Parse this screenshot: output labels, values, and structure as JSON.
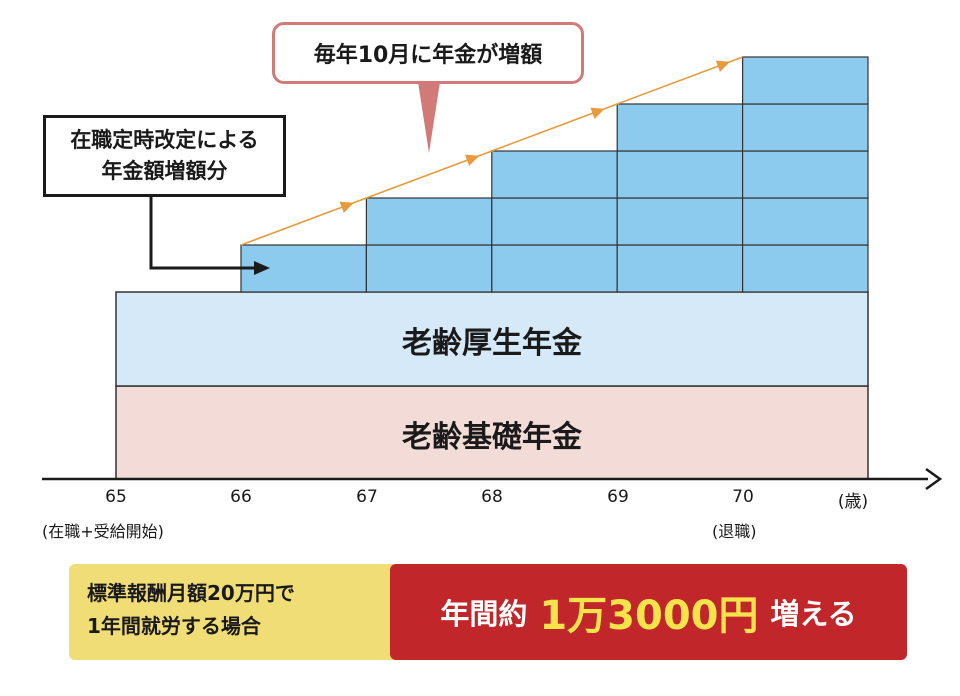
{
  "callout": {
    "text": "毎年10月に年金が増額"
  },
  "note": {
    "line1": "在職定時改定による",
    "line2": "年金額増額分"
  },
  "bars": {
    "kosei": "老齢厚生年金",
    "kiso": "老齢基礎年金"
  },
  "axis": {
    "ticks": [
      "65",
      "66",
      "67",
      "68",
      "69",
      "70"
    ],
    "unit": "(歳)",
    "start_note": "(在職+受給開始)",
    "end_note": "(退職)"
  },
  "steps": [
    1,
    2,
    3,
    4,
    5
  ],
  "condition": {
    "line1": "標準報酬月額20万円で",
    "line2": "1年間就労する場合"
  },
  "result": {
    "prefix": "年間約",
    "amount": "1万3000円",
    "suffix": "増える"
  },
  "colors": {
    "increment_blue": "#8ccbee",
    "kosei_blue": "#d6e9f8",
    "kiso_pink": "#f3dcd8",
    "arrow_orange": "#e89a3c",
    "callout_border": "#d27a78",
    "condition_yellow": "#f0dd75",
    "result_red": "#c1262b",
    "amount_yellow": "#f4e34a"
  }
}
